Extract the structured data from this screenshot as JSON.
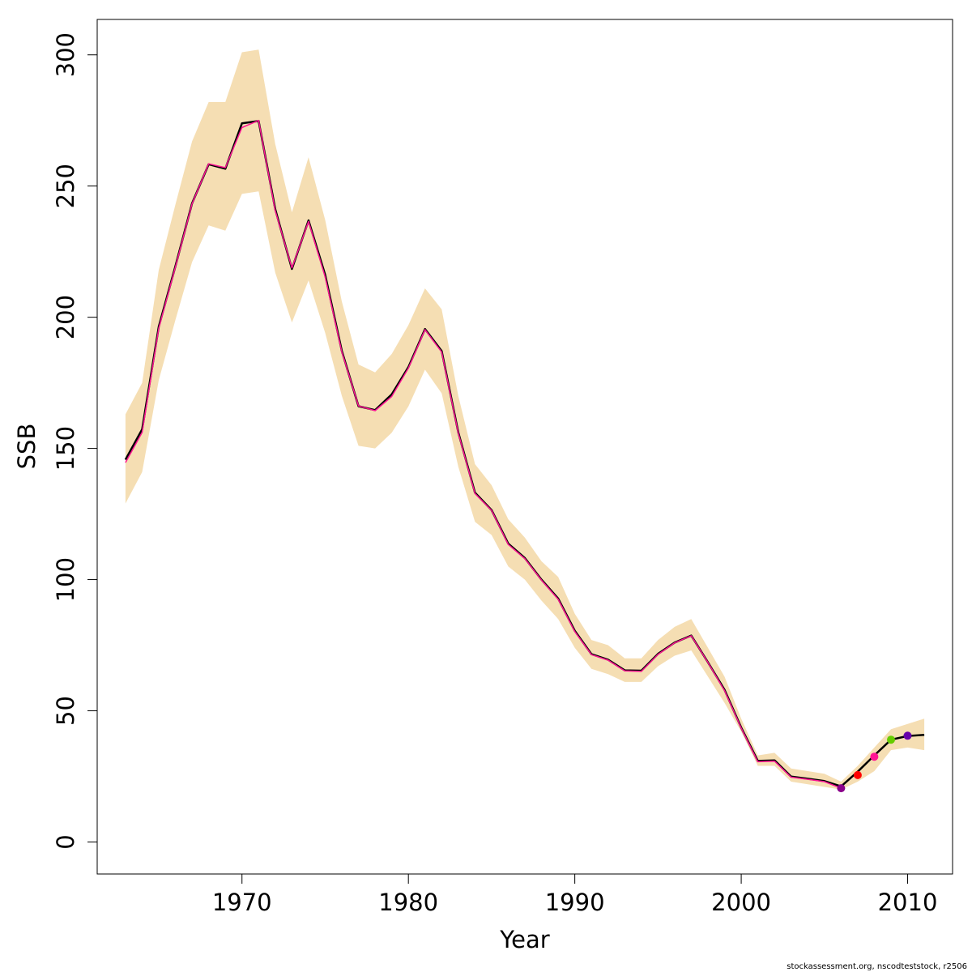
{
  "chart_data": {
    "type": "line",
    "xlabel": "Year",
    "ylabel": "SSB",
    "xlim": [
      1961.3,
      2012.7
    ],
    "ylim": [
      -12.2,
      313.5
    ],
    "xticks": [
      1970,
      1980,
      1990,
      2000,
      2010
    ],
    "yticks": [
      0,
      50,
      100,
      150,
      200,
      250,
      300
    ],
    "grid": false,
    "footnote": "stockassessment.org, nscodteststock, r2506",
    "colors": {
      "band": "#f5deb3",
      "main_line": "#000000",
      "retro_line": "#ff1493"
    },
    "band": {
      "x": [
        1963,
        1964,
        1965,
        1966,
        1967,
        1968,
        1969,
        1970,
        1971,
        1972,
        1973,
        1974,
        1975,
        1976,
        1977,
        1978,
        1979,
        1980,
        1981,
        1982,
        1983,
        1984,
        1985,
        1986,
        1987,
        1988,
        1989,
        1990,
        1991,
        1992,
        1993,
        1994,
        1995,
        1996,
        1997,
        1998,
        1999,
        2000,
        2001,
        2002,
        2003,
        2004,
        2005,
        2006,
        2007,
        2008,
        2009,
        2010,
        2011
      ],
      "lower": [
        129,
        141,
        176,
        199,
        221,
        235,
        233,
        247,
        248,
        217,
        198,
        214,
        194,
        170,
        151,
        150,
        156,
        166,
        180,
        171,
        143,
        122,
        117,
        105,
        100,
        92,
        85,
        74,
        66,
        64,
        61,
        61,
        67,
        71,
        73,
        63,
        53,
        42,
        29,
        29,
        23,
        22,
        21,
        20,
        23,
        27,
        35,
        36,
        35
      ],
      "upper": [
        163,
        175,
        218,
        243,
        267,
        282,
        282,
        301,
        302,
        266,
        240,
        261,
        237,
        206,
        182,
        179,
        186,
        197,
        211,
        203,
        170,
        144,
        136,
        123,
        116,
        107,
        101,
        87,
        77,
        75,
        70,
        70,
        77,
        82,
        85,
        74,
        63,
        47,
        33,
        34,
        28,
        27,
        26,
        23,
        29,
        36,
        43,
        45,
        47
      ]
    },
    "series": [
      {
        "x": [
          1963,
          1964,
          1965,
          1966,
          1967,
          1968,
          1969,
          1970,
          1971,
          1972,
          1973,
          1974,
          1975,
          1976,
          1977,
          1978,
          1979,
          1980,
          1981,
          1982,
          1983,
          1984,
          1985,
          1986,
          1987,
          1988,
          1989,
          1990,
          1991,
          1992,
          1993,
          1994,
          1995,
          1996,
          1997,
          1998,
          1999,
          2000,
          2001,
          2002,
          2003,
          2004,
          2005,
          2006,
          2007,
          2008,
          2009,
          2010,
          2011
        ],
        "values": [
          145.7,
          157.3,
          196.4,
          219.5,
          243.4,
          258.3,
          256.6,
          273.9,
          274.8,
          241.2,
          218.4,
          236.9,
          216.1,
          187.2,
          166.1,
          164.6,
          170.6,
          181.0,
          195.5,
          187.1,
          156.1,
          133.1,
          126.5,
          113.7,
          108.2,
          100.0,
          92.8,
          80.5,
          71.6,
          69.5,
          65.4,
          65.3,
          71.7,
          76.0,
          78.7,
          68.5,
          58.0,
          43.6,
          30.9,
          31.1,
          24.9,
          24.1,
          23.2,
          21.2,
          26.8,
          33.0,
          39.0,
          40.4,
          40.8
        ],
        "color": "#000000"
      },
      {
        "x": [
          1963,
          1964,
          1965,
          1966,
          1967,
          1968,
          1969,
          1970,
          1971,
          1972,
          1973,
          1974,
          1975,
          1976,
          1977,
          1978,
          1979,
          1980,
          1981,
          1982,
          1983,
          1984,
          1985,
          1986,
          1987,
          1988,
          1989,
          1990,
          1991,
          1992,
          1993,
          1994,
          1995,
          1996,
          1997,
          1998,
          1999,
          2000,
          2001,
          2002,
          2003,
          2004,
          2005,
          2006
        ],
        "values": [
          144.6,
          156.1,
          195.8,
          219.2,
          243.2,
          258.5,
          257.0,
          272.3,
          275.0,
          240.6,
          218.8,
          236.5,
          215.3,
          186.8,
          166.2,
          164.4,
          169.8,
          180.6,
          195.3,
          186.7,
          155.8,
          132.8,
          126.4,
          113.4,
          108.0,
          99.8,
          92.5,
          80.2,
          71.4,
          69.3,
          65.2,
          65.0,
          71.5,
          75.9,
          78.6,
          68.4,
          57.7,
          43.4,
          30.6,
          30.8,
          24.7,
          23.9,
          23.0,
          20.5
        ],
        "color": "#ff1493"
      }
    ],
    "retro_points": [
      {
        "x": 2006,
        "y": 20.5,
        "color": "#8b008b"
      },
      {
        "x": 2007,
        "y": 25.5,
        "color": "#ff0000"
      },
      {
        "x": 2008,
        "y": 32.5,
        "color": "#ff1493"
      },
      {
        "x": 2009,
        "y": 39.0,
        "color": "#66cc00"
      },
      {
        "x": 2010,
        "y": 40.5,
        "color": "#6600aa"
      }
    ]
  }
}
